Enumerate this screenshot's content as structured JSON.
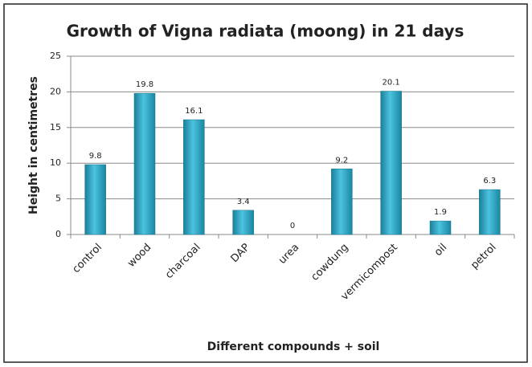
{
  "chart_data": {
    "type": "bar",
    "title": "Growth of Vigna radiata (moong) in 21 days",
    "y_label": "Height in centimetres",
    "x_label": "Different compounds + soil",
    "categories": [
      "control",
      "wood",
      "charcoal",
      "DAP",
      "urea",
      "cowdung",
      "vermicompost",
      "oil",
      "petrol"
    ],
    "values": [
      9.8,
      19.8,
      16.1,
      3.4,
      0,
      9.2,
      20.1,
      1.9,
      6.3
    ],
    "color": "#31a9c7",
    "ylim": [
      0,
      25
    ],
    "yticks": [
      0,
      5,
      10,
      15,
      20,
      25
    ],
    "grid": true
  }
}
